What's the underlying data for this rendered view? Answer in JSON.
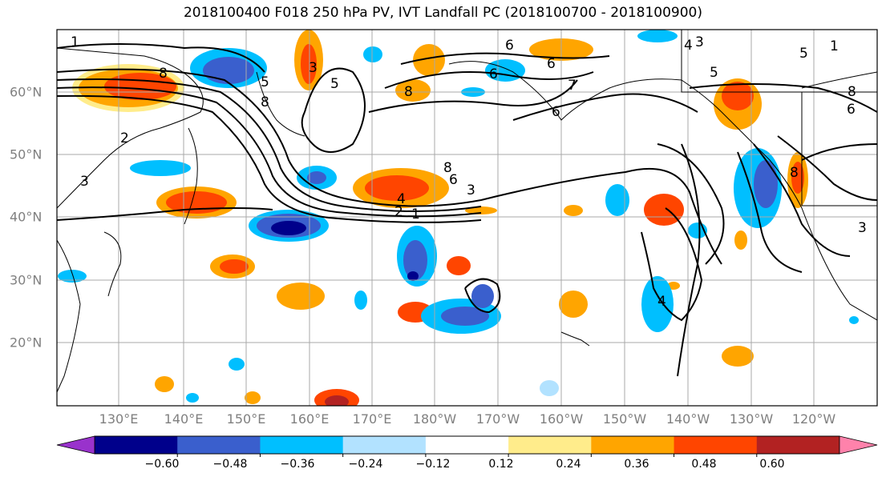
{
  "title": "2018100400 F018 250 hPa PV, IVT Landfall PC (2018100700 - 2018100900)",
  "axes": {
    "lon_labels": [
      "130°E",
      "140°E",
      "150°E",
      "160°E",
      "170°E",
      "180°W",
      "170°W",
      "160°W",
      "150°W",
      "140°W",
      "130°W",
      "120°W"
    ],
    "lat_labels": [
      "60°N",
      "50°N",
      "40°N",
      "30°N",
      "20°N"
    ]
  },
  "colorbar": {
    "tick_labels": [
      "−0.60",
      "−0.48",
      "−0.36",
      "−0.24",
      "−0.12",
      "0.12",
      "0.24",
      "0.36",
      "0.48",
      "0.60"
    ],
    "colors": [
      "#9932cc",
      "#00008b",
      "#3a5fcd",
      "#00bfff",
      "#b2e2ff",
      "#ffffff",
      "#ffec8b",
      "#ffa500",
      "#ff4500",
      "#b22222",
      "#ff82ab"
    ]
  },
  "contour_labels": [
    "1",
    "8",
    "5",
    "8",
    "3",
    "2",
    "8",
    "6",
    "3",
    "4",
    "2",
    "1",
    "6",
    "7",
    "6",
    "6",
    "4",
    "3",
    "5",
    "8",
    "6",
    "8",
    "5",
    "8",
    "1",
    "3",
    "3",
    "4",
    "6",
    "5"
  ],
  "map_elements": {
    "coastlines_color": "#000000",
    "grid_color": "#a9a9a9"
  }
}
